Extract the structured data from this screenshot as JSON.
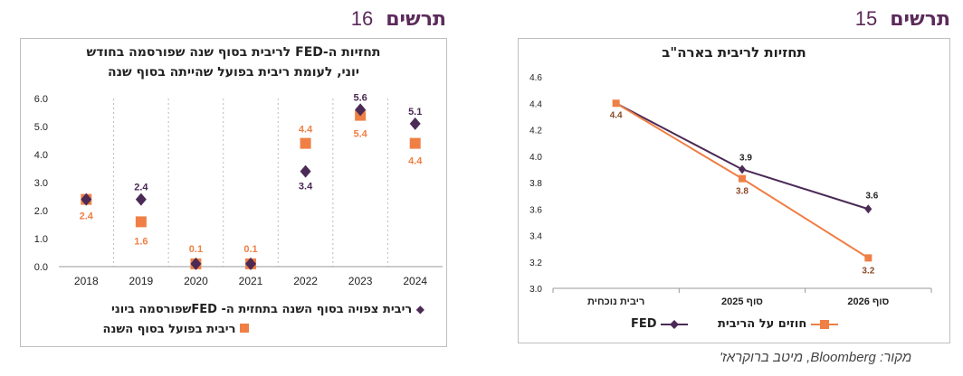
{
  "header_left": {
    "label": "תרשים",
    "number": "16"
  },
  "header_right": {
    "label": "תרשים",
    "number": "15"
  },
  "source": "מקור: Bloomberg, מיטב ברוקראז'",
  "colors": {
    "purple": "#4b2a55",
    "orange": "#ef7f45",
    "header": "#5b2a5a"
  },
  "chart_data": [
    {
      "type": "scatter",
      "title_line1": "תחזיות ה-FED לריבית בסוף שנה שפורסמה בחודש",
      "title_line2": "יוני, לעומת ריבית בפועל שהייתה בסוף שנה",
      "categories": [
        "2018",
        "2019",
        "2020",
        "2021",
        "2022",
        "2023",
        "2024"
      ],
      "ylim": [
        0,
        6
      ],
      "yticks": [
        "0.0",
        "1.0",
        "2.0",
        "3.0",
        "4.0",
        "5.0",
        "6.0"
      ],
      "series": [
        {
          "name": "ריבית צפויה  בסוף השנה בתחזית ה- FEDשפורסמה ביוני",
          "marker": "diamond",
          "values": [
            2.4,
            2.4,
            0.1,
            0.1,
            3.4,
            5.6,
            5.1
          ],
          "labels": [
            "",
            "2.4",
            "",
            "",
            "3.4",
            "5.6",
            "5.1"
          ]
        },
        {
          "name": "ריבית בפועל בסוף השנה",
          "marker": "square",
          "values": [
            2.4,
            1.6,
            0.1,
            0.1,
            4.4,
            5.4,
            4.4
          ],
          "labels": [
            "2.4",
            "1.6",
            "0.1",
            "0.1",
            "4.4",
            "5.4",
            "4.4"
          ]
        }
      ],
      "grid": "vertical-dotted",
      "legend": "bottom"
    },
    {
      "type": "line",
      "title": "תחזיות לריבית בארה\"ב",
      "categories": [
        "ריבית נוכחית",
        "סוף 2025",
        "סוף 2026"
      ],
      "ylim": [
        3.0,
        4.6
      ],
      "yticks": [
        "3.0",
        "3.2",
        "3.4",
        "3.6",
        "3.8",
        "4.0",
        "4.2",
        "4.4",
        "4.6"
      ],
      "series": [
        {
          "name": "FED",
          "marker": "diamond",
          "values": [
            4.4,
            3.9,
            3.6
          ],
          "labels": [
            "",
            "3.9",
            "3.6"
          ]
        },
        {
          "name": "חוזים על הריבית",
          "marker": "square",
          "values": [
            4.4,
            3.83,
            3.23
          ],
          "labels": [
            "4.4",
            "3.8",
            "3.2"
          ]
        }
      ],
      "grid": "none",
      "legend": "bottom"
    }
  ]
}
